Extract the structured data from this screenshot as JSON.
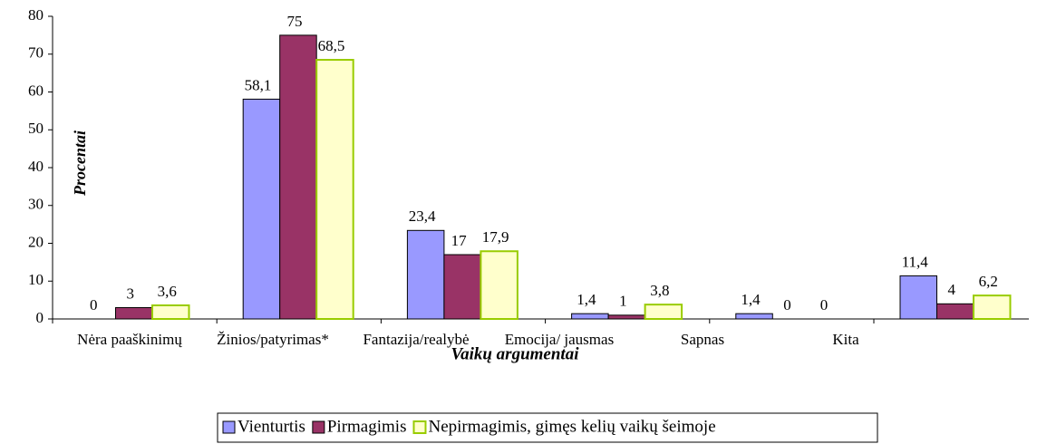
{
  "chart_data": {
    "type": "bar",
    "x_label": "Vaikų argumentai",
    "y_label": "Procentai",
    "categories": [
      "Nėra paaškinimų",
      "Žinios/patyrimas*",
      "Fantazija/realybė",
      "Emocija/ jausmas",
      "Sapnas",
      "Kita"
    ],
    "series": [
      {
        "name": "Vienturtis",
        "color": "#9999ff",
        "edge": "#000000",
        "values": [
          0,
          58.1,
          23.4,
          1.4,
          1.4,
          11.4
        ],
        "value_labels": [
          "0",
          "58,1",
          "23,4",
          "1,4",
          "1,4",
          "11,4"
        ]
      },
      {
        "name": "Pirmagimis",
        "color": "#993366",
        "edge": "#000000",
        "values": [
          3,
          75,
          17,
          1,
          0,
          4
        ],
        "value_labels": [
          "3",
          "75",
          "17",
          "1",
          "0",
          "4"
        ]
      },
      {
        "name": "Nepirmagimis, gimęs kelių vaikų šeimoje",
        "color": "#ffffcc",
        "edge": "#99cc00",
        "values": [
          3.6,
          68.5,
          17.9,
          3.8,
          0,
          6.2
        ],
        "value_labels": [
          "3,6",
          "68,5",
          "17,9",
          "3,8",
          "0",
          "6,2"
        ]
      }
    ],
    "ylim": [
      0,
      80
    ],
    "yticks": [
      0,
      10,
      20,
      30,
      40,
      50,
      60,
      70,
      80
    ],
    "legend": "bottom"
  }
}
